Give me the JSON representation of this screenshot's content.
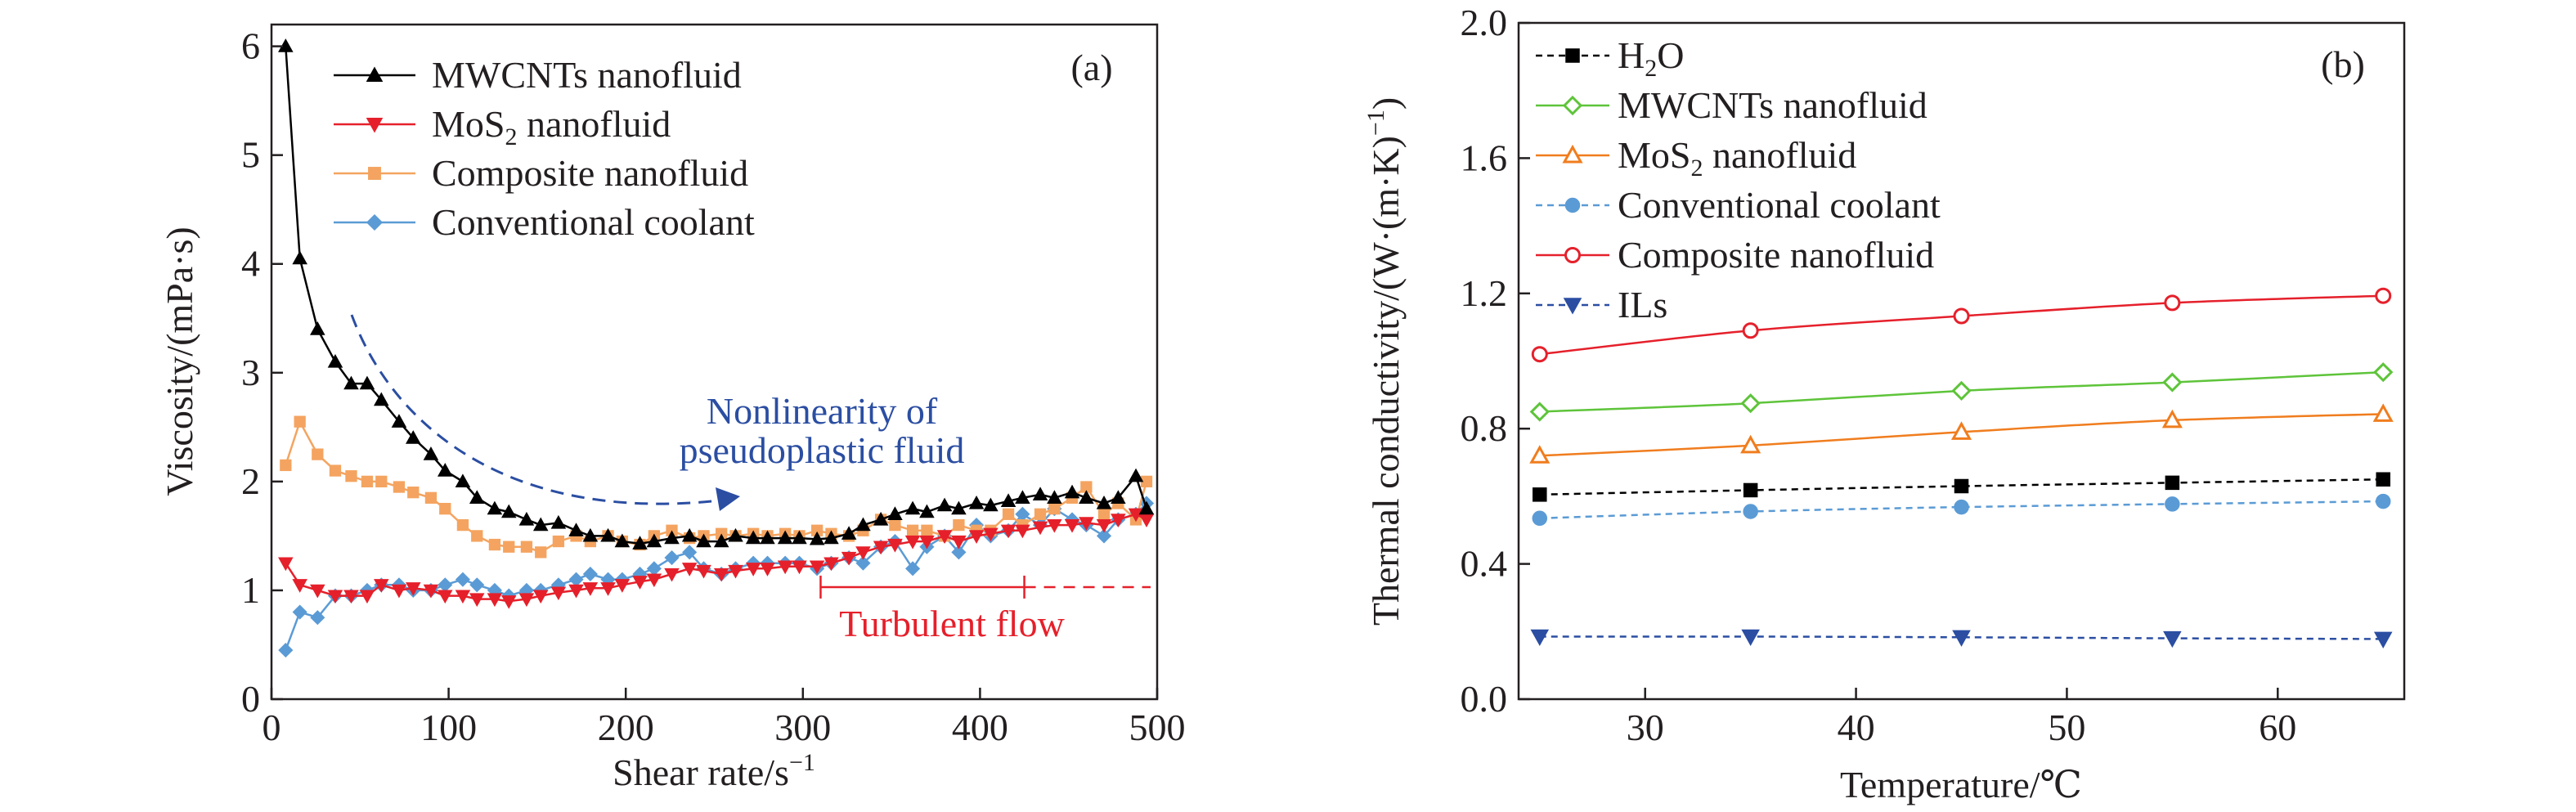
{
  "chart_data": [
    {
      "panel_label": "(a)",
      "type": "line",
      "xlabel": "Shear rate/s",
      "xlabel_sup": "−1",
      "ylabel": "Viscosity/(mPa·s)",
      "xlim": [
        0,
        500
      ],
      "ylim": [
        0,
        6.2
      ],
      "xticks": [
        "0",
        "100",
        "200",
        "300",
        "400",
        "500"
      ],
      "yticks": [
        "0",
        "1",
        "2",
        "3",
        "4",
        "5",
        "6"
      ],
      "grid": false,
      "legend_position": "top-left",
      "annotations": {
        "arrow_text_line1": "Nonlinearity of",
        "arrow_text_line2": "pseudoplastic fluid",
        "turbulent_text": "Turbulent flow",
        "turbulent_start": 310,
        "turbulent_mid": 425
      },
      "series": [
        {
          "name": "MWCNTs nanofluid",
          "color": "#000000",
          "marker": "triangle-up",
          "x": [
            8,
            16,
            26,
            36,
            45,
            54,
            62,
            72,
            80,
            90,
            98,
            108,
            116,
            126,
            134,
            144,
            152,
            162,
            172,
            180,
            190,
            198,
            208,
            216,
            226,
            236,
            244,
            254,
            262,
            272,
            280,
            290,
            298,
            308,
            316,
            326,
            334,
            344,
            352,
            362,
            370,
            380,
            388,
            398,
            406,
            416,
            424,
            434,
            442,
            452,
            460,
            470,
            478,
            488,
            494
          ],
          "values": [
            6.0,
            4.05,
            3.4,
            3.1,
            2.9,
            2.9,
            2.75,
            2.55,
            2.4,
            2.25,
            2.1,
            2.0,
            1.85,
            1.75,
            1.72,
            1.65,
            1.6,
            1.62,
            1.55,
            1.5,
            1.5,
            1.45,
            1.43,
            1.45,
            1.48,
            1.5,
            1.45,
            1.45,
            1.5,
            1.48,
            1.48,
            1.48,
            1.48,
            1.47,
            1.48,
            1.52,
            1.6,
            1.65,
            1.7,
            1.75,
            1.72,
            1.78,
            1.75,
            1.8,
            1.78,
            1.82,
            1.85,
            1.88,
            1.85,
            1.9,
            1.85,
            1.8,
            1.85,
            2.05,
            1.75
          ]
        },
        {
          "name": "MoS2 nanofluid",
          "color": "#e5202b",
          "marker": "triangle-down",
          "x": [
            8,
            16,
            26,
            36,
            45,
            54,
            62,
            72,
            80,
            90,
            98,
            108,
            116,
            126,
            134,
            144,
            152,
            162,
            172,
            180,
            190,
            198,
            208,
            216,
            226,
            236,
            244,
            254,
            262,
            272,
            280,
            290,
            298,
            308,
            316,
            326,
            334,
            344,
            352,
            362,
            370,
            380,
            388,
            398,
            406,
            416,
            424,
            434,
            442,
            452,
            460,
            470,
            478,
            488,
            494
          ],
          "values": [
            1.25,
            1.05,
            1.0,
            0.95,
            0.95,
            0.95,
            1.05,
            1.0,
            1.02,
            1.0,
            0.95,
            0.95,
            0.92,
            0.92,
            0.9,
            0.92,
            0.95,
            0.98,
            1.0,
            1.02,
            1.02,
            1.05,
            1.08,
            1.1,
            1.15,
            1.2,
            1.18,
            1.15,
            1.18,
            1.2,
            1.2,
            1.22,
            1.22,
            1.22,
            1.25,
            1.3,
            1.35,
            1.4,
            1.42,
            1.45,
            1.45,
            1.5,
            1.45,
            1.5,
            1.52,
            1.55,
            1.55,
            1.58,
            1.6,
            1.6,
            1.62,
            1.6,
            1.65,
            1.7,
            1.65
          ]
        },
        {
          "name": "Composite nanofluid",
          "color": "#f4a460",
          "marker": "square",
          "x": [
            8,
            16,
            26,
            36,
            45,
            54,
            62,
            72,
            80,
            90,
            98,
            108,
            116,
            126,
            134,
            144,
            152,
            162,
            172,
            180,
            190,
            198,
            208,
            216,
            226,
            236,
            244,
            254,
            262,
            272,
            280,
            290,
            298,
            308,
            316,
            326,
            334,
            344,
            352,
            362,
            370,
            380,
            388,
            398,
            406,
            416,
            424,
            434,
            442,
            452,
            460,
            470,
            478,
            488,
            494
          ],
          "values": [
            2.15,
            2.55,
            2.25,
            2.1,
            2.05,
            2.0,
            2.0,
            1.95,
            1.9,
            1.85,
            1.75,
            1.6,
            1.5,
            1.42,
            1.4,
            1.4,
            1.35,
            1.45,
            1.5,
            1.45,
            1.5,
            1.45,
            1.42,
            1.5,
            1.55,
            1.48,
            1.5,
            1.52,
            1.5,
            1.52,
            1.5,
            1.52,
            1.5,
            1.55,
            1.52,
            1.5,
            1.55,
            1.65,
            1.6,
            1.55,
            1.55,
            1.5,
            1.6,
            1.55,
            1.55,
            1.7,
            1.6,
            1.7,
            1.75,
            1.85,
            1.95,
            1.7,
            1.8,
            1.65,
            2.0
          ]
        },
        {
          "name": "Conventional coolant",
          "color": "#5b9bd5",
          "marker": "diamond",
          "x": [
            8,
            16,
            26,
            36,
            45,
            54,
            62,
            72,
            80,
            90,
            98,
            108,
            116,
            126,
            134,
            144,
            152,
            162,
            172,
            180,
            190,
            198,
            208,
            216,
            226,
            236,
            244,
            254,
            262,
            272,
            280,
            290,
            298,
            308,
            316,
            326,
            334,
            344,
            352,
            362,
            370,
            380,
            388,
            398,
            406,
            416,
            424,
            434,
            442,
            452,
            460,
            470,
            478,
            488,
            494
          ],
          "values": [
            0.45,
            0.8,
            0.75,
            0.95,
            0.95,
            1.0,
            1.05,
            1.05,
            1.0,
            1.0,
            1.05,
            1.1,
            1.05,
            1.0,
            0.95,
            1.0,
            1.0,
            1.05,
            1.1,
            1.15,
            1.1,
            1.1,
            1.15,
            1.2,
            1.3,
            1.35,
            1.2,
            1.15,
            1.2,
            1.25,
            1.25,
            1.25,
            1.25,
            1.2,
            1.25,
            1.3,
            1.25,
            1.4,
            1.45,
            1.2,
            1.4,
            1.5,
            1.35,
            1.6,
            1.5,
            1.55,
            1.7,
            1.6,
            1.75,
            1.65,
            1.6,
            1.5,
            1.65,
            1.7,
            1.8
          ]
        }
      ]
    },
    {
      "panel_label": "(b)",
      "type": "line",
      "xlabel": "Temperature/℃",
      "ylabel": "Thermal conductivity/(W·(m·K)",
      "ylabel_sup": "−1",
      "ylabel_tail": ")",
      "xlim": [
        24,
        66
      ],
      "ylim": [
        0,
        2.0
      ],
      "xticks": [
        "30",
        "40",
        "50",
        "60"
      ],
      "xtick_values": [
        30,
        40,
        50,
        60
      ],
      "yticks": [
        "0.0",
        "0.4",
        "0.8",
        "1.2",
        "1.6",
        "2.0"
      ],
      "ytick_values": [
        0,
        0.4,
        0.8,
        1.2,
        1.6,
        2.0
      ],
      "grid": false,
      "legend_position": "top-left",
      "series": [
        {
          "name": "H2O",
          "color": "#000000",
          "marker": "square-filled",
          "dashed": true,
          "x": [
            25,
            35,
            45,
            55,
            65
          ],
          "values": [
            0.605,
            0.618,
            0.63,
            0.64,
            0.65
          ]
        },
        {
          "name": "MWCNTs nanofluid",
          "color": "#5ec43a",
          "marker": "diamond-open",
          "dashed": false,
          "x": [
            25,
            35,
            45,
            55,
            65
          ],
          "values": [
            0.85,
            0.875,
            0.912,
            0.937,
            0.967
          ]
        },
        {
          "name": "MoS2 nanofluid",
          "color": "#f07d1e",
          "marker": "triangle-open",
          "dashed": false,
          "x": [
            25,
            35,
            45,
            55,
            65
          ],
          "values": [
            0.72,
            0.75,
            0.79,
            0.825,
            0.843
          ]
        },
        {
          "name": "Conventional coolant",
          "color": "#5b9bd5",
          "marker": "circle-filled",
          "dashed": true,
          "x": [
            25,
            35,
            45,
            55,
            65
          ],
          "values": [
            0.535,
            0.555,
            0.568,
            0.577,
            0.585
          ]
        },
        {
          "name": "Composite nanofluid",
          "color": "#e5202b",
          "marker": "circle-open",
          "dashed": false,
          "x": [
            25,
            35,
            45,
            55,
            65
          ],
          "values": [
            1.02,
            1.09,
            1.133,
            1.172,
            1.193
          ]
        },
        {
          "name": "ILs",
          "color": "#2b4ea2",
          "marker": "triangle-down-filled",
          "dashed": true,
          "x": [
            25,
            35,
            45,
            55,
            65
          ],
          "values": [
            0.185,
            0.185,
            0.183,
            0.18,
            0.178
          ]
        }
      ]
    }
  ]
}
